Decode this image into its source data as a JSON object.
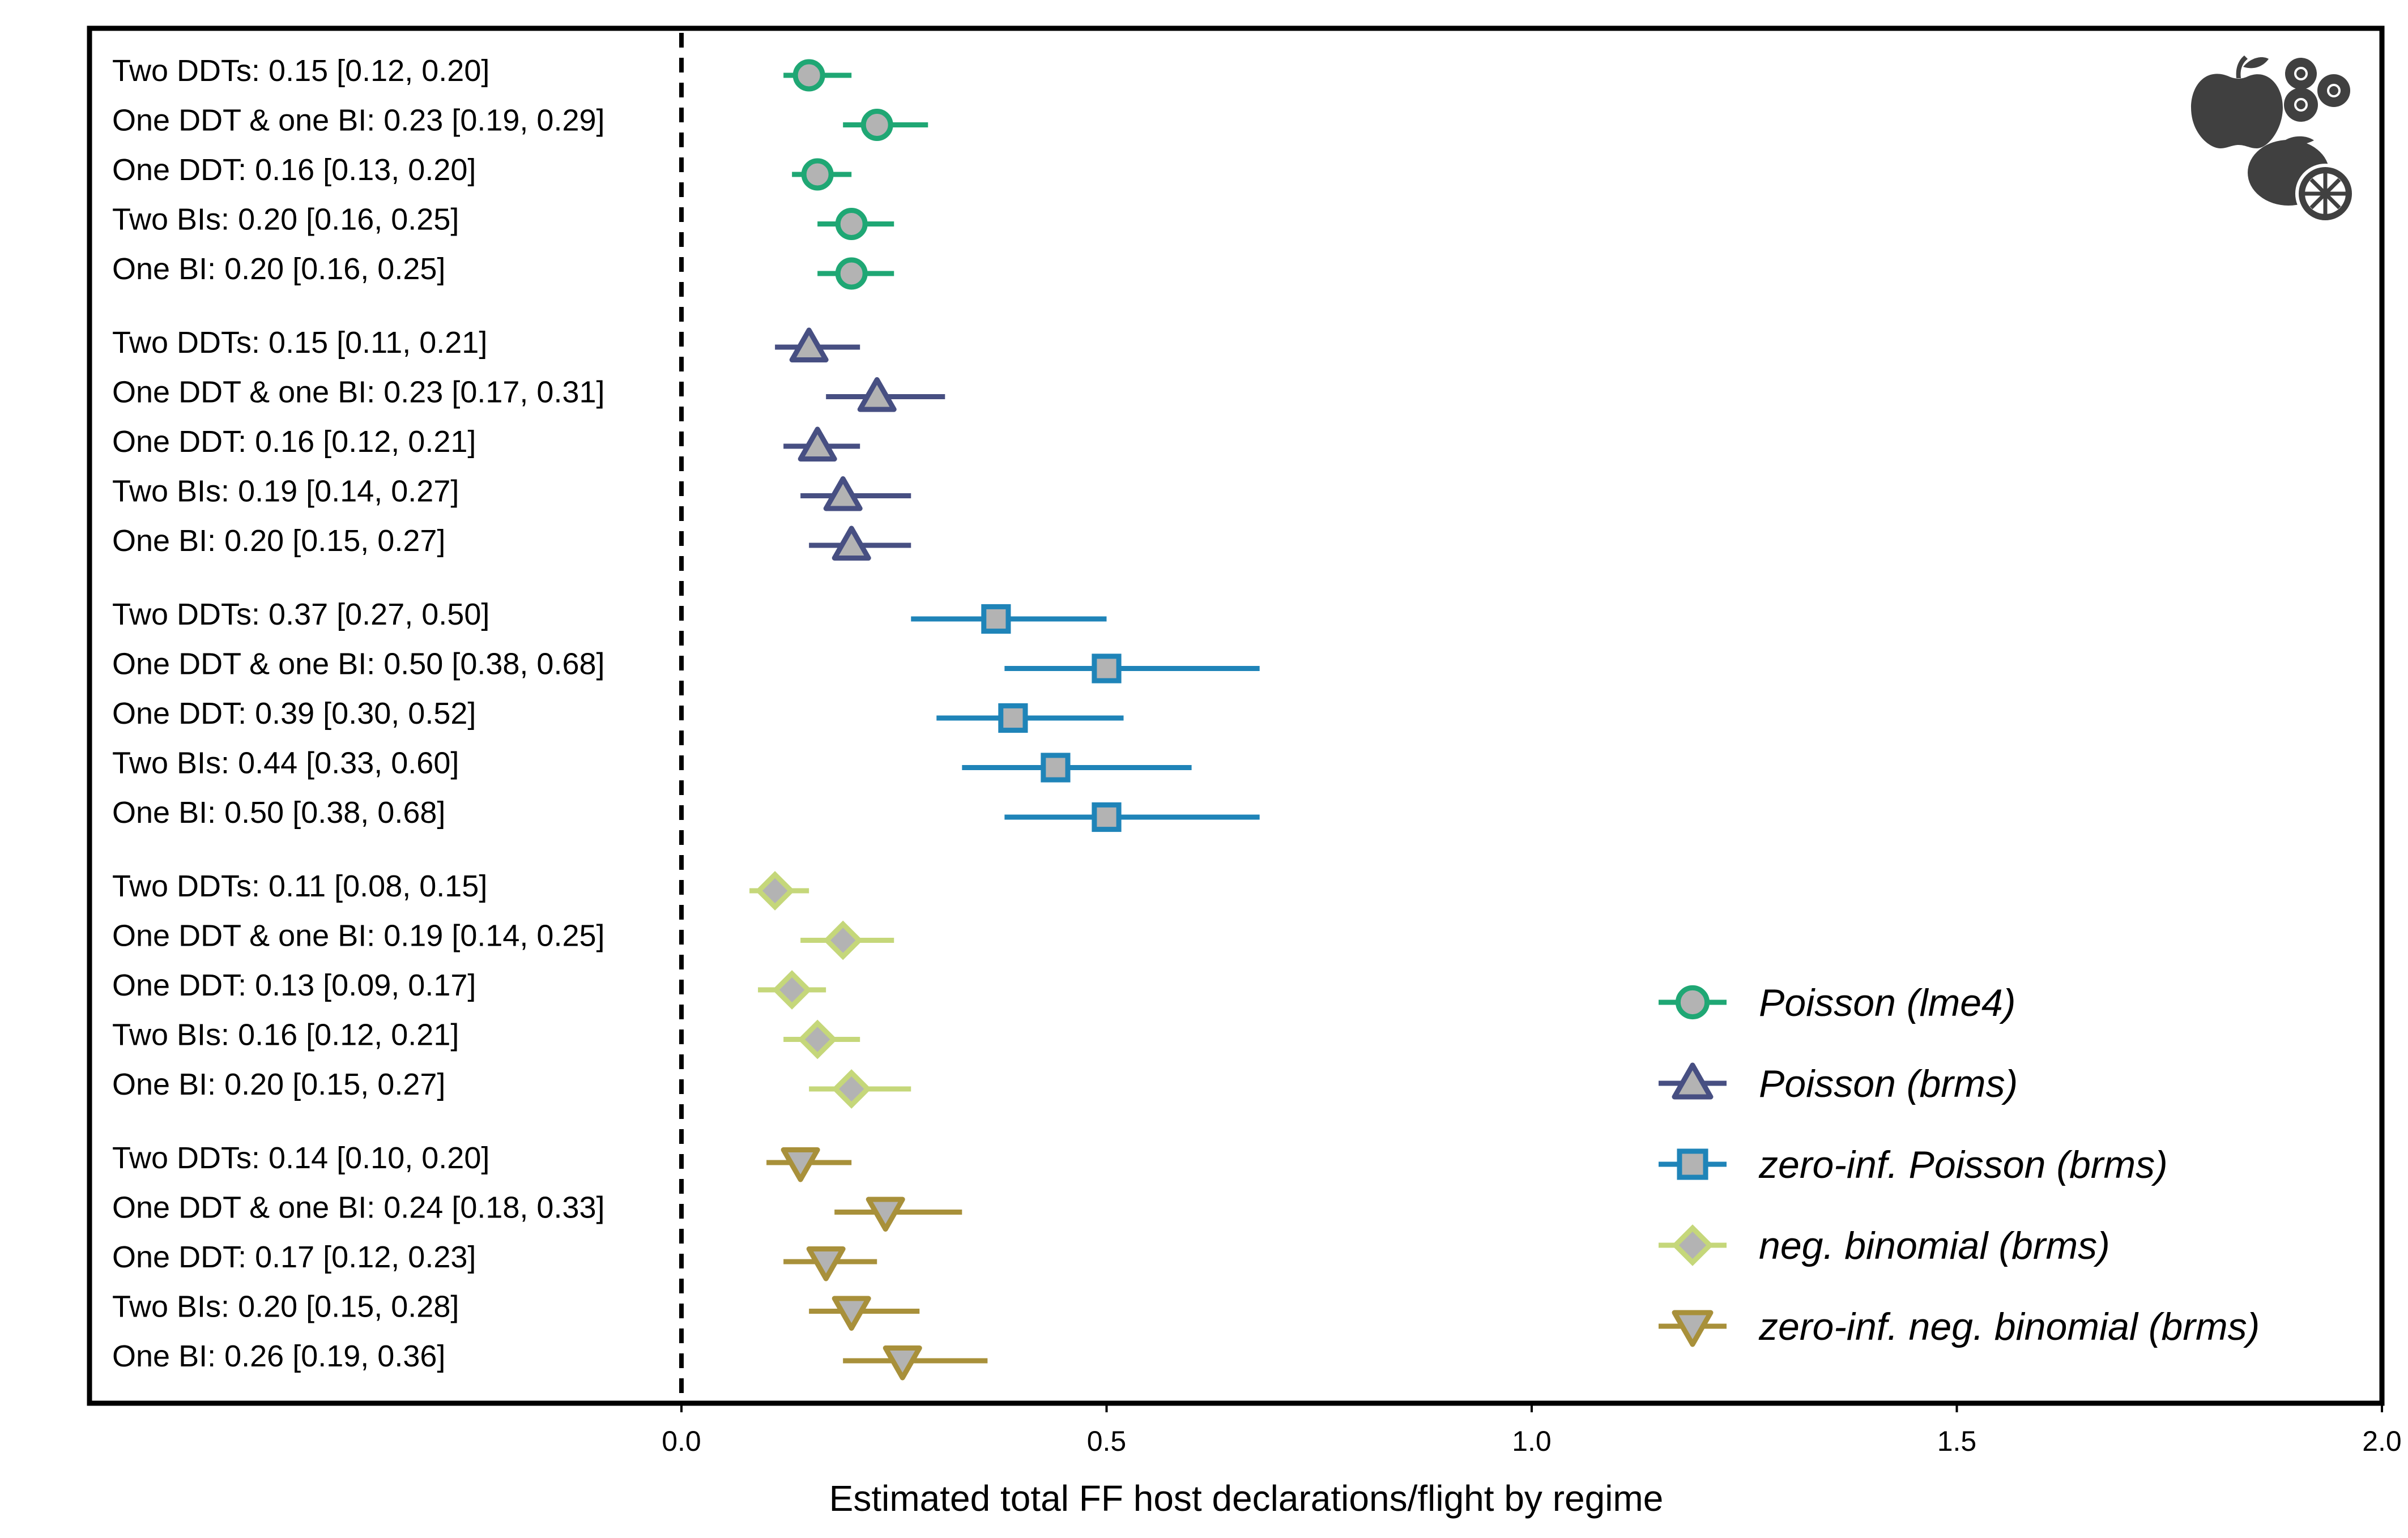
{
  "chart_data": {
    "type": "scatter",
    "subtype": "forest-plot",
    "title": "",
    "xlabel": "Estimated total FF host declarations/flight by regime",
    "ylabel": "",
    "xlim": [
      0,
      2
    ],
    "xticks": [
      "0.0",
      "0.5",
      "1.0",
      "1.5",
      "2.0"
    ],
    "xtick_values": [
      0,
      0.5,
      1.0,
      1.5,
      2.0
    ],
    "reference_line": 0,
    "grid": false,
    "legend_position": "bottom-right",
    "icon": "fruit-icon",
    "series": [
      {
        "name": "Poisson (lme4)",
        "color": "#1fa774",
        "marker": "circle",
        "points": [
          {
            "label": "Two DDTs: 0.15 [0.12, 0.20]",
            "estimate": 0.15,
            "lower": 0.12,
            "upper": 0.2
          },
          {
            "label": "One DDT & one BI: 0.23 [0.19, 0.29]",
            "estimate": 0.23,
            "lower": 0.19,
            "upper": 0.29
          },
          {
            "label": "One DDT: 0.16 [0.13, 0.20]",
            "estimate": 0.16,
            "lower": 0.13,
            "upper": 0.2
          },
          {
            "label": "Two BIs: 0.20 [0.16, 0.25]",
            "estimate": 0.2,
            "lower": 0.16,
            "upper": 0.25
          },
          {
            "label": "One BI: 0.20 [0.16, 0.25]",
            "estimate": 0.2,
            "lower": 0.16,
            "upper": 0.25
          }
        ]
      },
      {
        "name": "Poisson (brms)",
        "color": "#474f82",
        "marker": "triangle-up",
        "points": [
          {
            "label": "Two DDTs: 0.15 [0.11, 0.21]",
            "estimate": 0.15,
            "lower": 0.11,
            "upper": 0.21
          },
          {
            "label": "One DDT & one BI: 0.23 [0.17, 0.31]",
            "estimate": 0.23,
            "lower": 0.17,
            "upper": 0.31
          },
          {
            "label": "One DDT: 0.16 [0.12, 0.21]",
            "estimate": 0.16,
            "lower": 0.12,
            "upper": 0.21
          },
          {
            "label": "Two BIs: 0.19 [0.14, 0.27]",
            "estimate": 0.19,
            "lower": 0.14,
            "upper": 0.27
          },
          {
            "label": "One BI: 0.20 [0.15, 0.27]",
            "estimate": 0.2,
            "lower": 0.15,
            "upper": 0.27
          }
        ]
      },
      {
        "name": "zero-inf. Poisson (brms)",
        "color": "#1f84b8",
        "marker": "square",
        "points": [
          {
            "label": "Two DDTs: 0.37 [0.27, 0.50]",
            "estimate": 0.37,
            "lower": 0.27,
            "upper": 0.5
          },
          {
            "label": "One DDT & one BI: 0.50 [0.38, 0.68]",
            "estimate": 0.5,
            "lower": 0.38,
            "upper": 0.68
          },
          {
            "label": "One DDT: 0.39 [0.30, 0.52]",
            "estimate": 0.39,
            "lower": 0.3,
            "upper": 0.52
          },
          {
            "label": "Two BIs: 0.44 [0.33, 0.60]",
            "estimate": 0.44,
            "lower": 0.33,
            "upper": 0.6
          },
          {
            "label": "One BI: 0.50 [0.38, 0.68]",
            "estimate": 0.5,
            "lower": 0.38,
            "upper": 0.68
          }
        ]
      },
      {
        "name": "neg. binomial (brms)",
        "color": "#c5d77a",
        "marker": "diamond",
        "points": [
          {
            "label": "Two DDTs: 0.11 [0.08, 0.15]",
            "estimate": 0.11,
            "lower": 0.08,
            "upper": 0.15
          },
          {
            "label": "One DDT & one BI: 0.19 [0.14, 0.25]",
            "estimate": 0.19,
            "lower": 0.14,
            "upper": 0.25
          },
          {
            "label": "One DDT: 0.13 [0.09, 0.17]",
            "estimate": 0.13,
            "lower": 0.09,
            "upper": 0.17
          },
          {
            "label": "Two BIs: 0.16 [0.12, 0.21]",
            "estimate": 0.16,
            "lower": 0.12,
            "upper": 0.21
          },
          {
            "label": "One BI: 0.20 [0.15, 0.27]",
            "estimate": 0.2,
            "lower": 0.15,
            "upper": 0.27
          }
        ]
      },
      {
        "name": "zero-inf. neg. binomial (brms)",
        "color": "#a8903a",
        "marker": "triangle-down",
        "points": [
          {
            "label": "Two DDTs: 0.14 [0.10, 0.20]",
            "estimate": 0.14,
            "lower": 0.1,
            "upper": 0.2
          },
          {
            "label": "One DDT & one BI: 0.24 [0.18, 0.33]",
            "estimate": 0.24,
            "lower": 0.18,
            "upper": 0.33
          },
          {
            "label": "One DDT: 0.17 [0.12, 0.23]",
            "estimate": 0.17,
            "lower": 0.12,
            "upper": 0.23
          },
          {
            "label": "Two BIs: 0.20 [0.15, 0.28]",
            "estimate": 0.2,
            "lower": 0.15,
            "upper": 0.28
          },
          {
            "label": "One BI: 0.26 [0.19, 0.36]",
            "estimate": 0.26,
            "lower": 0.19,
            "upper": 0.36
          }
        ]
      }
    ]
  }
}
